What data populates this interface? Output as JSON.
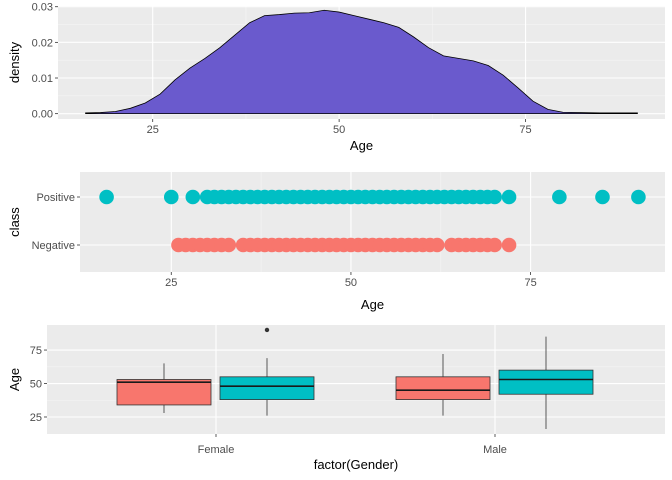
{
  "colors": {
    "panel": "#EBEBEB",
    "grid_major": "#FFFFFF",
    "density_fill": "#6A5ACD",
    "positive": "#00BFC4",
    "negative": "#F8766D",
    "female_fill": "#F8766D",
    "male_fill": "#00BFC4",
    "tick_text": "#4D4D4D",
    "axis_title": "#000000"
  },
  "chart_data": [
    {
      "type": "area",
      "subtype": "density",
      "xlabel": "Age",
      "ylabel": "density",
      "xlim": [
        12.3,
        93.7
      ],
      "ylim": [
        -0.0015,
        0.0302
      ],
      "xticks": [
        25,
        50,
        75
      ],
      "xtick_labels": [
        "25",
        "50",
        "75"
      ],
      "yticks": [
        0.0,
        0.01,
        0.02,
        0.03
      ],
      "ytick_labels": [
        "0.00",
        "0.01",
        "0.02",
        "0.03"
      ],
      "grid": true,
      "x": [
        16,
        18,
        20,
        22,
        24,
        26,
        28,
        30,
        32,
        34,
        36,
        38,
        40,
        42,
        44,
        46,
        48,
        50,
        52,
        54,
        56,
        58,
        60,
        62,
        64,
        66,
        68,
        70,
        72,
        74,
        76,
        78,
        80,
        85,
        90
      ],
      "y": [
        0.0002,
        0.0003,
        0.0006,
        0.0015,
        0.003,
        0.0055,
        0.0095,
        0.0128,
        0.0155,
        0.0185,
        0.022,
        0.0255,
        0.0275,
        0.0278,
        0.0282,
        0.0283,
        0.029,
        0.0285,
        0.0275,
        0.0265,
        0.0255,
        0.0242,
        0.0215,
        0.0185,
        0.0162,
        0.0155,
        0.0148,
        0.0135,
        0.0108,
        0.0072,
        0.0035,
        0.0012,
        0.0004,
        0.0002,
        0.0002
      ]
    },
    {
      "type": "scatter",
      "xlabel": "Age",
      "ylabel": "class",
      "xlim": [
        12.3,
        93.7
      ],
      "categories": [
        "Positive",
        "Negative"
      ],
      "xticks": [
        25,
        50,
        75
      ],
      "xtick_labels": [
        "25",
        "50",
        "75"
      ],
      "grid": true,
      "series": [
        {
          "category": "Positive",
          "color": "#00BFC4",
          "values": [
            16,
            25,
            28,
            30,
            31,
            32,
            33,
            34,
            35,
            36,
            37,
            38,
            39,
            40,
            41,
            42,
            43,
            44,
            45,
            46,
            47,
            48,
            49,
            50,
            51,
            52,
            53,
            54,
            55,
            56,
            57,
            58,
            59,
            60,
            61,
            62,
            63,
            64,
            65,
            66,
            67,
            68,
            69,
            70,
            72,
            79,
            85,
            90
          ]
        },
        {
          "category": "Negative",
          "color": "#F8766D",
          "values": [
            26,
            27,
            28,
            29,
            30,
            31,
            32,
            33,
            35,
            36,
            37,
            38,
            39,
            40,
            41,
            42,
            43,
            44,
            45,
            46,
            47,
            48,
            49,
            50,
            51,
            52,
            53,
            54,
            55,
            56,
            57,
            58,
            59,
            60,
            61,
            62,
            64,
            65,
            66,
            67,
            68,
            69,
            70,
            72
          ]
        }
      ]
    },
    {
      "type": "box",
      "xlabel": "factor(Gender)",
      "ylabel": "Age",
      "ylim": [
        12.3,
        93.7
      ],
      "categories": [
        "Female",
        "Male"
      ],
      "yticks": [
        25,
        50,
        75
      ],
      "ytick_labels": [
        "25",
        "50",
        "75"
      ],
      "grid": true,
      "boxes": [
        {
          "group": "Female",
          "fill": "#F8766D",
          "whisker_low": 28,
          "q1": 34,
          "median": 51,
          "q3": 53,
          "whisker_high": 65,
          "outliers": []
        },
        {
          "group": "Female",
          "fill": "#00BFC4",
          "whisker_low": 26,
          "q1": 38,
          "median": 48,
          "q3": 55,
          "whisker_high": 69,
          "outliers": [
            90
          ]
        },
        {
          "group": "Male",
          "fill": "#F8766D",
          "whisker_low": 26,
          "q1": 38,
          "median": 45,
          "q3": 55,
          "whisker_high": 72,
          "outliers": []
        },
        {
          "group": "Male",
          "fill": "#00BFC4",
          "whisker_low": 16,
          "q1": 42,
          "median": 53,
          "q3": 60,
          "whisker_high": 85,
          "outliers": []
        }
      ]
    }
  ]
}
